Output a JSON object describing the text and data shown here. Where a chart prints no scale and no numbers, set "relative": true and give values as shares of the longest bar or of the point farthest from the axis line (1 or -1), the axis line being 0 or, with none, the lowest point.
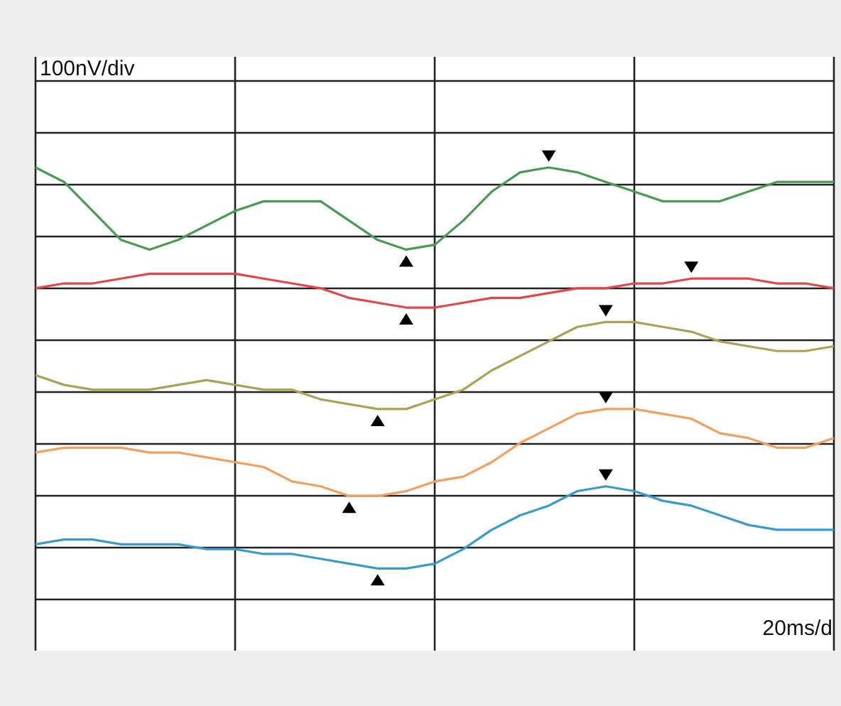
{
  "chart_data": {
    "type": "line",
    "relative": true,
    "categories": [
      null,
      null,
      null,
      null,
      null,
      null,
      null,
      null,
      null,
      null,
      null,
      null,
      null,
      null,
      null,
      null,
      null,
      null,
      null,
      null,
      null,
      null,
      null,
      null,
      null,
      null,
      null,
      null,
      null
    ],
    "grid": true,
    "line_style": "solid",
    "annotations": [
      "100nV/div",
      "20ms/d"
    ],
    "series": [
      {
        "color": "#4a9a55",
        "values": [
          1.0,
          0.97,
          0.91,
          0.85,
          0.83,
          0.85,
          0.88,
          0.91,
          0.93,
          0.93,
          0.93,
          0.89,
          0.85,
          0.83,
          0.84,
          0.89,
          0.95,
          0.99,
          1.0,
          0.99,
          0.97,
          0.95,
          0.93,
          0.93,
          0.93,
          0.95,
          0.97,
          0.97,
          0.97
        ]
      },
      {
        "color": "#e0474a",
        "values": [
          0.75,
          0.76,
          0.76,
          0.77,
          0.78,
          0.78,
          0.78,
          0.78,
          0.77,
          0.76,
          0.75,
          0.73,
          0.72,
          0.71,
          0.71,
          0.72,
          0.73,
          0.73,
          0.74,
          0.75,
          0.75,
          0.76,
          0.76,
          0.77,
          0.77,
          0.77,
          0.76,
          0.76,
          0.75
        ]
      },
      {
        "color": "#a9a35a",
        "values": [
          0.57,
          0.55,
          0.54,
          0.54,
          0.54,
          0.55,
          0.56,
          0.55,
          0.54,
          0.54,
          0.52,
          0.51,
          0.5,
          0.5,
          0.52,
          0.54,
          0.58,
          0.61,
          0.64,
          0.67,
          0.68,
          0.68,
          0.67,
          0.66,
          0.64,
          0.63,
          0.62,
          0.62,
          0.63
        ]
      },
      {
        "color": "#f0a060",
        "values": [
          0.41,
          0.42,
          0.42,
          0.42,
          0.41,
          0.41,
          0.4,
          0.39,
          0.38,
          0.35,
          0.34,
          0.32,
          0.32,
          0.33,
          0.35,
          0.36,
          0.39,
          0.43,
          0.46,
          0.49,
          0.5,
          0.5,
          0.49,
          0.48,
          0.45,
          0.44,
          0.42,
          0.42,
          0.44
        ]
      },
      {
        "color": "#3a9ac8",
        "values": [
          0.22,
          0.23,
          0.23,
          0.22,
          0.22,
          0.22,
          0.21,
          0.21,
          0.2,
          0.2,
          0.19,
          0.18,
          0.17,
          0.17,
          0.18,
          0.21,
          0.25,
          0.28,
          0.3,
          0.33,
          0.34,
          0.33,
          0.31,
          0.3,
          0.28,
          0.26,
          0.25,
          0.25,
          0.25
        ]
      }
    ]
  }
}
